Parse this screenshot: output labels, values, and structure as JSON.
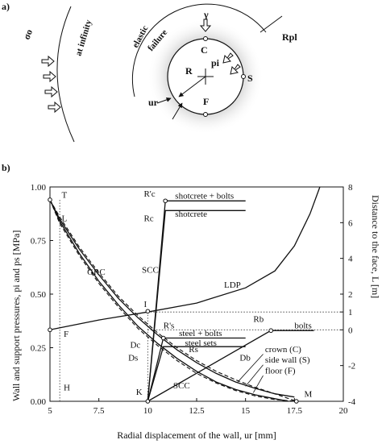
{
  "panel_a": {
    "panel_label": "a)",
    "sigma_label": "σo",
    "infinity_label": "at infinity",
    "elastic_label": "elastic",
    "failure_label": "failure",
    "gamma_label": "γ",
    "rpl_label": "Rpl",
    "c_label": "C",
    "pi_label": "pi",
    "s_label": "S",
    "r_label": "R",
    "f_label": "F",
    "ur_label": "ur"
  },
  "panel_b": {
    "panel_label": "b)",
    "ylabel_left": "Wall and support pressures, pi and ps [MPa]",
    "ylabel_right": "Distance to the face, L [m]",
    "xlabel": "Radial displacement of the wall, ur [mm]"
  },
  "chart_data": {
    "type": "line",
    "xlabel": "Radial displacement of the wall, ur [mm]",
    "ylabel": "Wall and support pressures, pi and ps [MPa]",
    "y2label": "Distance to the face, L [m]",
    "xlim": [
      5,
      20
    ],
    "ylim": [
      0,
      1.0
    ],
    "y2lim": [
      -4,
      8
    ],
    "x_ticks": [
      5,
      7.5,
      10,
      12.5,
      15,
      17.5,
      20
    ],
    "x_tick_labels": [
      "5",
      "7.5",
      "10",
      "12.5",
      "15",
      "17.5",
      "20"
    ],
    "y_ticks": [
      0,
      0.25,
      0.5,
      0.75,
      1.0
    ],
    "y_tick_labels": [
      "0.00",
      "0.25",
      "0.50",
      "0.75",
      "1.00"
    ],
    "y2_ticks": [
      -4,
      -2,
      0,
      1,
      2,
      4,
      6,
      8
    ],
    "y2_tick_labels": [
      "-4",
      "-2",
      "0",
      "1",
      "2",
      "4",
      "6",
      "8"
    ],
    "series": [
      {
        "name": "GRC",
        "style": "solid",
        "x": [
          5.0,
          5.5,
          6.5,
          7.5,
          8.5,
          9.5,
          10.5,
          11.5,
          12.5,
          13.5,
          14.5,
          15.5,
          16.5,
          17.5
        ],
        "y": [
          0.94,
          0.85,
          0.71,
          0.59,
          0.48,
          0.39,
          0.31,
          0.24,
          0.18,
          0.13,
          0.09,
          0.06,
          0.035,
          0.02
        ]
      },
      {
        "name": "crown (C)",
        "style": "solid",
        "x": [
          5.0,
          5.5,
          6.5,
          7.5,
          8.5,
          9.5,
          10.5,
          11.5,
          12.5,
          13.5,
          14.5,
          15.5,
          16.5,
          17.2
        ],
        "y": [
          0.94,
          0.84,
          0.69,
          0.56,
          0.45,
          0.35,
          0.27,
          0.2,
          0.14,
          0.09,
          0.055,
          0.03,
          0.012,
          0.0
        ]
      },
      {
        "name": "side wall (S)",
        "style": "dashed",
        "x": [
          5.0,
          5.5,
          6.5,
          7.5,
          8.5,
          9.5,
          10.5,
          11.5,
          12.5,
          13.5,
          14.5,
          15.5,
          16.5,
          17.6
        ],
        "y": [
          0.94,
          0.86,
          0.72,
          0.6,
          0.49,
          0.4,
          0.32,
          0.25,
          0.19,
          0.14,
          0.1,
          0.065,
          0.035,
          0.0
        ]
      },
      {
        "name": "floor (F)",
        "style": "dashed",
        "x": [
          5.0,
          5.5,
          6.5,
          7.5,
          8.5,
          9.5,
          10.5,
          11.5,
          12.5,
          13.5,
          14.5,
          15.5,
          16.5,
          17.6
        ],
        "y": [
          0.94,
          0.83,
          0.68,
          0.55,
          0.44,
          0.34,
          0.26,
          0.19,
          0.13,
          0.085,
          0.05,
          0.025,
          0.008,
          0.0
        ]
      },
      {
        "name": "LDP",
        "axis": "right",
        "x": [
          5.0,
          7.5,
          10.0,
          12.5,
          15.0,
          16.5,
          17.5,
          18.3,
          18.8
        ],
        "y": [
          0.0,
          0.55,
          1.0,
          1.5,
          2.35,
          3.3,
          4.7,
          6.5,
          8.0
        ]
      },
      {
        "name": "shotcrete",
        "x": [
          10.0,
          10.9,
          15.0
        ],
        "y": [
          0.0,
          0.89,
          0.89
        ]
      },
      {
        "name": "shotcrete + bolts",
        "x": [
          10.0,
          10.9,
          15.0
        ],
        "y": [
          0.0,
          0.935,
          0.935
        ]
      },
      {
        "name": "steel sets",
        "x": [
          10.0,
          10.8,
          15.0
        ],
        "y": [
          0.0,
          0.255,
          0.255
        ]
      },
      {
        "name": "steel + bolts",
        "x": [
          10.0,
          10.8,
          15.0
        ],
        "y": [
          0.0,
          0.295,
          0.295
        ]
      },
      {
        "name": "bolts",
        "x": [
          10.0,
          16.3,
          18.5
        ],
        "y": [
          0.0,
          0.33,
          0.33
        ]
      }
    ],
    "annotations": [
      "T",
      "L",
      "GRC",
      "I",
      "F",
      "H",
      "K",
      "R'c",
      "Rc",
      "SCC",
      "R's",
      "Rs",
      "Dc",
      "Ds",
      "Db",
      "Rb",
      "M",
      "LDP"
    ]
  }
}
